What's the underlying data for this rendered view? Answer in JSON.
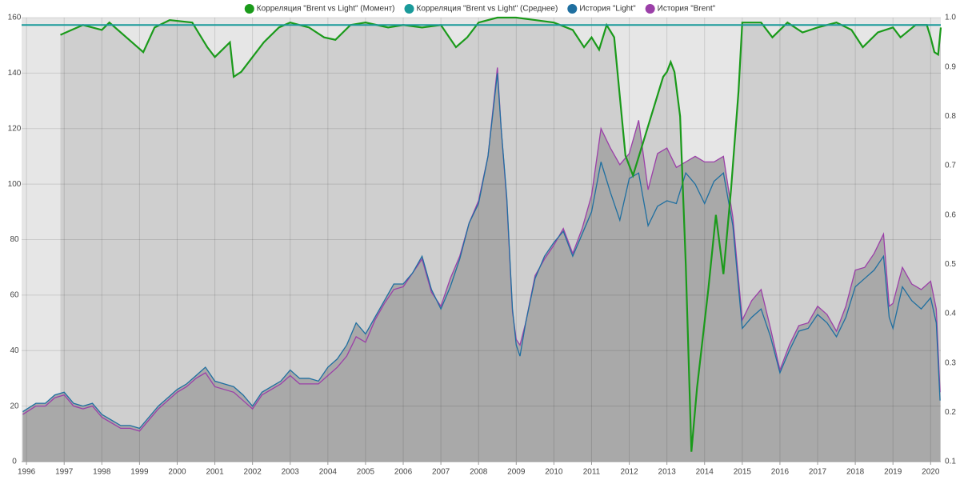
{
  "chart_data": {
    "type": "line",
    "xlim": [
      1995.87,
      2020.27
    ],
    "xticks": [
      1996,
      1997,
      1998,
      1999,
      2000,
      2001,
      2002,
      2003,
      2004,
      2005,
      2006,
      2007,
      2008,
      2009,
      2010,
      2011,
      2012,
      2013,
      2014,
      2015,
      2016,
      2017,
      2018,
      2019,
      2020
    ],
    "ylim": [
      0,
      160
    ],
    "yticks": [
      0,
      20,
      40,
      60,
      80,
      100,
      120,
      140,
      160
    ],
    "y2lim": [
      0.1,
      1.0
    ],
    "y2ticks": [
      0.1,
      0.2,
      0.3,
      0.4,
      0.5,
      0.6,
      0.7,
      0.8,
      0.9,
      {
        "value": 1.0,
        "label": "1.0"
      }
    ],
    "grid": true,
    "legend": "top",
    "x": [
      1995.9,
      1996.25,
      1996.5,
      1996.75,
      1997.0,
      1997.25,
      1997.5,
      1997.75,
      1998.0,
      1998.25,
      1998.5,
      1998.75,
      1999.0,
      1999.25,
      1999.5,
      1999.75,
      2000.0,
      2000.25,
      2000.5,
      2000.75,
      2001.0,
      2001.25,
      2001.5,
      2001.75,
      2002.0,
      2002.25,
      2002.5,
      2002.75,
      2003.0,
      2003.25,
      2003.5,
      2003.75,
      2004.0,
      2004.25,
      2004.5,
      2004.75,
      2005.0,
      2005.25,
      2005.5,
      2005.75,
      2006.0,
      2006.25,
      2006.5,
      2006.75,
      2007.0,
      2007.25,
      2007.5,
      2007.75,
      2008.0,
      2008.25,
      2008.5,
      2008.6,
      2008.75,
      2008.9,
      2009.0,
      2009.1,
      2009.25,
      2009.5,
      2009.75,
      2010.0,
      2010.25,
      2010.5,
      2010.75,
      2011.0,
      2011.25,
      2011.5,
      2011.75,
      2012.0,
      2012.25,
      2012.5,
      2012.75,
      2013.0,
      2013.25,
      2013.5,
      2013.75,
      2014.0,
      2014.25,
      2014.5,
      2014.75,
      2015.0,
      2015.25,
      2015.5,
      2015.75,
      2016.0,
      2016.25,
      2016.5,
      2016.75,
      2017.0,
      2017.25,
      2017.5,
      2017.75,
      2018.0,
      2018.25,
      2018.5,
      2018.75,
      2018.9,
      2019.0,
      2019.25,
      2019.5,
      2019.75,
      2020.0,
      2020.15,
      2020.25
    ],
    "series": [
      {
        "name": "Корреляция \"Brent vs Light\" (Момент)",
        "color": "#1a9a1a",
        "axis": "y2",
        "x": [
          1996.9,
          1997.2,
          1997.5,
          1998.0,
          1998.2,
          1998.8,
          1999.1,
          1999.4,
          1999.8,
          2000.4,
          2000.8,
          2001.0,
          2001.4,
          2001.5,
          2001.7,
          2002.0,
          2002.3,
          2002.7,
          2003.0,
          2003.5,
          2003.9,
          2004.2,
          2004.6,
          2005.0,
          2005.6,
          2006.0,
          2006.5,
          2007.0,
          2007.4,
          2007.7,
          2008.0,
          2008.5,
          2009.0,
          2009.5,
          2010.0,
          2010.5,
          2010.8,
          2011.0,
          2011.2,
          2011.4,
          2011.6,
          2011.9,
          2012.1,
          2012.5,
          2012.9,
          2013.0,
          2013.1,
          2013.2,
          2013.35,
          2013.5,
          2013.65,
          2013.8,
          2014.1,
          2014.3,
          2014.5,
          2014.7,
          2014.9,
          2015.0,
          2015.5,
          2015.8,
          2016.2,
          2016.6,
          2017.0,
          2017.5,
          2017.9,
          2018.2,
          2018.6,
          2019.0,
          2019.2,
          2019.6,
          2019.9,
          2020.0,
          2020.1,
          2020.2,
          2020.27
        ],
        "values": [
          0.965,
          0.975,
          0.985,
          0.975,
          0.99,
          0.95,
          0.93,
          0.98,
          0.995,
          0.99,
          0.94,
          0.92,
          0.95,
          0.88,
          0.89,
          0.92,
          0.95,
          0.98,
          0.99,
          0.98,
          0.96,
          0.955,
          0.985,
          0.99,
          0.98,
          0.985,
          0.98,
          0.985,
          0.94,
          0.96,
          0.99,
          1.0,
          1.0,
          0.995,
          0.99,
          0.975,
          0.94,
          0.96,
          0.935,
          0.985,
          0.96,
          0.72,
          0.68,
          0.78,
          0.88,
          0.89,
          0.91,
          0.89,
          0.8,
          0.5,
          0.12,
          0.25,
          0.45,
          0.6,
          0.48,
          0.65,
          0.85,
          0.99,
          0.99,
          0.96,
          0.99,
          0.97,
          0.98,
          0.99,
          0.975,
          0.94,
          0.97,
          0.98,
          0.96,
          0.985,
          0.985,
          0.96,
          0.93,
          0.925,
          0.98
        ]
      },
      {
        "name": "Корреляция \"Brent vs Light\" (Среднее)",
        "color": "#1a9a9a",
        "axis": "y2",
        "value": 0.985
      },
      {
        "name": "История \"Light\"",
        "color": "#1f6fa0",
        "values": [
          18,
          21,
          21,
          24,
          25,
          21,
          20,
          21,
          17,
          15,
          13,
          13,
          12,
          16,
          20,
          23,
          26,
          28,
          31,
          34,
          29,
          28,
          27,
          24,
          20,
          25,
          27,
          29,
          33,
          30,
          30,
          29,
          34,
          37,
          42,
          50,
          46,
          52,
          58,
          64,
          64,
          68,
          74,
          62,
          55,
          63,
          73,
          86,
          93,
          110,
          140,
          120,
          95,
          55,
          42,
          38,
          50,
          66,
          74,
          79,
          83,
          74,
          82,
          90,
          108,
          97,
          87,
          102,
          104,
          85,
          92,
          94,
          93,
          104,
          100,
          93,
          101,
          104,
          85,
          48,
          52,
          55,
          45,
          32,
          40,
          47,
          48,
          53,
          50,
          45,
          52,
          63,
          66,
          69,
          74,
          52,
          48,
          63,
          58,
          55,
          59,
          50,
          22
        ]
      },
      {
        "name": "История \"Brent\"",
        "color": "#9b3fa8",
        "values": [
          17,
          20,
          20,
          23,
          24,
          20,
          19,
          20,
          16,
          14,
          12,
          12,
          11,
          15,
          19,
          22,
          25,
          27,
          30,
          32,
          27,
          26,
          25,
          22,
          19,
          24,
          26,
          28,
          31,
          28,
          28,
          28,
          31,
          34,
          38,
          45,
          43,
          51,
          57,
          62,
          63,
          68,
          73,
          61,
          56,
          66,
          74,
          86,
          94,
          110,
          142,
          120,
          94,
          54,
          44,
          42,
          50,
          67,
          73,
          78,
          84,
          75,
          84,
          96,
          120,
          113,
          107,
          111,
          123,
          98,
          111,
          113,
          106,
          108,
          110,
          108,
          108,
          110,
          88,
          51,
          58,
          62,
          48,
          33,
          42,
          49,
          50,
          56,
          53,
          47,
          56,
          69,
          70,
          75,
          82,
          56,
          57,
          70,
          64,
          62,
          65,
          55,
          25
        ]
      }
    ]
  }
}
